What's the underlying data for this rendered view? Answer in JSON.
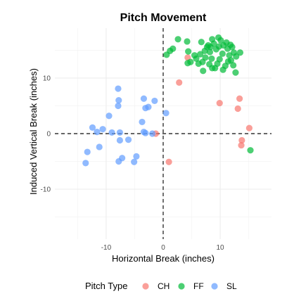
{
  "chart_data": {
    "type": "scatter",
    "title": "Pitch Movement",
    "xlabel": "Horizontal Break (inches)",
    "ylabel": "Induced Vertical Break (inches)",
    "xlim": [
      -19,
      19
    ],
    "ylim": [
      -19,
      19
    ],
    "x_ticks": [
      -10,
      0,
      10
    ],
    "y_ticks": [
      -10,
      0,
      10
    ],
    "x_tick_labels": [
      "-10",
      "0",
      "10"
    ],
    "y_tick_labels": [
      "-10",
      "0",
      "10"
    ],
    "grid": true,
    "reference_lines": {
      "x": 0,
      "y": 0,
      "style": "dashed"
    },
    "legend": {
      "title": "Pitch Type",
      "position": "bottom"
    },
    "series": [
      {
        "name": "CH",
        "color": "#F8766D",
        "points": [
          [
            2.8,
            9.2
          ],
          [
            4.3,
            13.7
          ],
          [
            9.9,
            5.5
          ],
          [
            13.4,
            6.3
          ],
          [
            13.1,
            4.5
          ],
          [
            15.1,
            1.0
          ],
          [
            13.8,
            -1.2
          ],
          [
            13.7,
            -2.1
          ],
          [
            1.0,
            -5.1
          ],
          [
            -1.3,
            0.0
          ]
        ]
      },
      {
        "name": "FF",
        "color": "#00BA38",
        "points": [
          [
            0.6,
            14.2
          ],
          [
            1.2,
            14.9
          ],
          [
            1.7,
            15.3
          ],
          [
            2.6,
            17.0
          ],
          [
            4.2,
            16.6
          ],
          [
            4.4,
            14.8
          ],
          [
            4.8,
            12.9
          ],
          [
            4.3,
            12.7
          ],
          [
            6.7,
            16.5
          ],
          [
            7.3,
            14.9
          ],
          [
            7.7,
            15.6
          ],
          [
            7.9,
            15.9
          ],
          [
            8.3,
            15.6
          ],
          [
            8.6,
            17.0
          ],
          [
            8.9,
            16.2
          ],
          [
            9.3,
            15.2
          ],
          [
            9.7,
            17.3
          ],
          [
            10.1,
            16.8
          ],
          [
            10.6,
            15.9
          ],
          [
            11.1,
            16.4
          ],
          [
            11.3,
            15.3
          ],
          [
            11.8,
            16.0
          ],
          [
            12.1,
            15.6
          ],
          [
            12.4,
            14.6
          ],
          [
            12.8,
            13.9
          ],
          [
            13.5,
            14.6
          ],
          [
            11.6,
            14.1
          ],
          [
            11.4,
            13.0
          ],
          [
            10.9,
            12.2
          ],
          [
            10.4,
            14.4
          ],
          [
            9.9,
            13.4
          ],
          [
            9.5,
            12.6
          ],
          [
            9.1,
            11.8
          ],
          [
            8.5,
            13.5
          ],
          [
            8.1,
            12.5
          ],
          [
            7.4,
            13.7
          ],
          [
            6.9,
            12.9
          ],
          [
            6.5,
            14.3
          ],
          [
            6.2,
            12.6
          ],
          [
            5.8,
            13.5
          ],
          [
            5.5,
            14.1
          ],
          [
            7.0,
            11.3
          ],
          [
            8.6,
            11.8
          ],
          [
            10.5,
            11.5
          ],
          [
            12.3,
            12.3
          ],
          [
            12.7,
            11.0
          ],
          [
            9.8,
            15.7
          ],
          [
            8.2,
            14.7
          ],
          [
            11.9,
            13.2
          ],
          [
            15.3,
            -3.0
          ]
        ]
      },
      {
        "name": "SL",
        "color": "#619CFF",
        "points": [
          [
            -7.9,
            8.1
          ],
          [
            -7.8,
            6.0
          ],
          [
            -7.9,
            5.0
          ],
          [
            -3.4,
            6.3
          ],
          [
            -1.5,
            5.9
          ],
          [
            -3.1,
            4.6
          ],
          [
            -2.6,
            4.8
          ],
          [
            -9.5,
            3.2
          ],
          [
            -3.7,
            2.1
          ],
          [
            0.5,
            3.7
          ],
          [
            -12.4,
            1.1
          ],
          [
            -11.6,
            0.3
          ],
          [
            -10.6,
            0.8
          ],
          [
            -9.0,
            0.2
          ],
          [
            -7.6,
            0.2
          ],
          [
            -3.4,
            0.3
          ],
          [
            -3.1,
            0.1
          ],
          [
            -1.9,
            0.0
          ],
          [
            -7.6,
            -1.2
          ],
          [
            -6.1,
            -1.1
          ],
          [
            -11.2,
            -2.4
          ],
          [
            -13.3,
            -3.3
          ],
          [
            -4.7,
            -4.1
          ],
          [
            -7.8,
            -5.0
          ],
          [
            -7.2,
            -4.4
          ],
          [
            -5.1,
            -5.1
          ],
          [
            -13.6,
            -5.3
          ]
        ]
      }
    ]
  }
}
